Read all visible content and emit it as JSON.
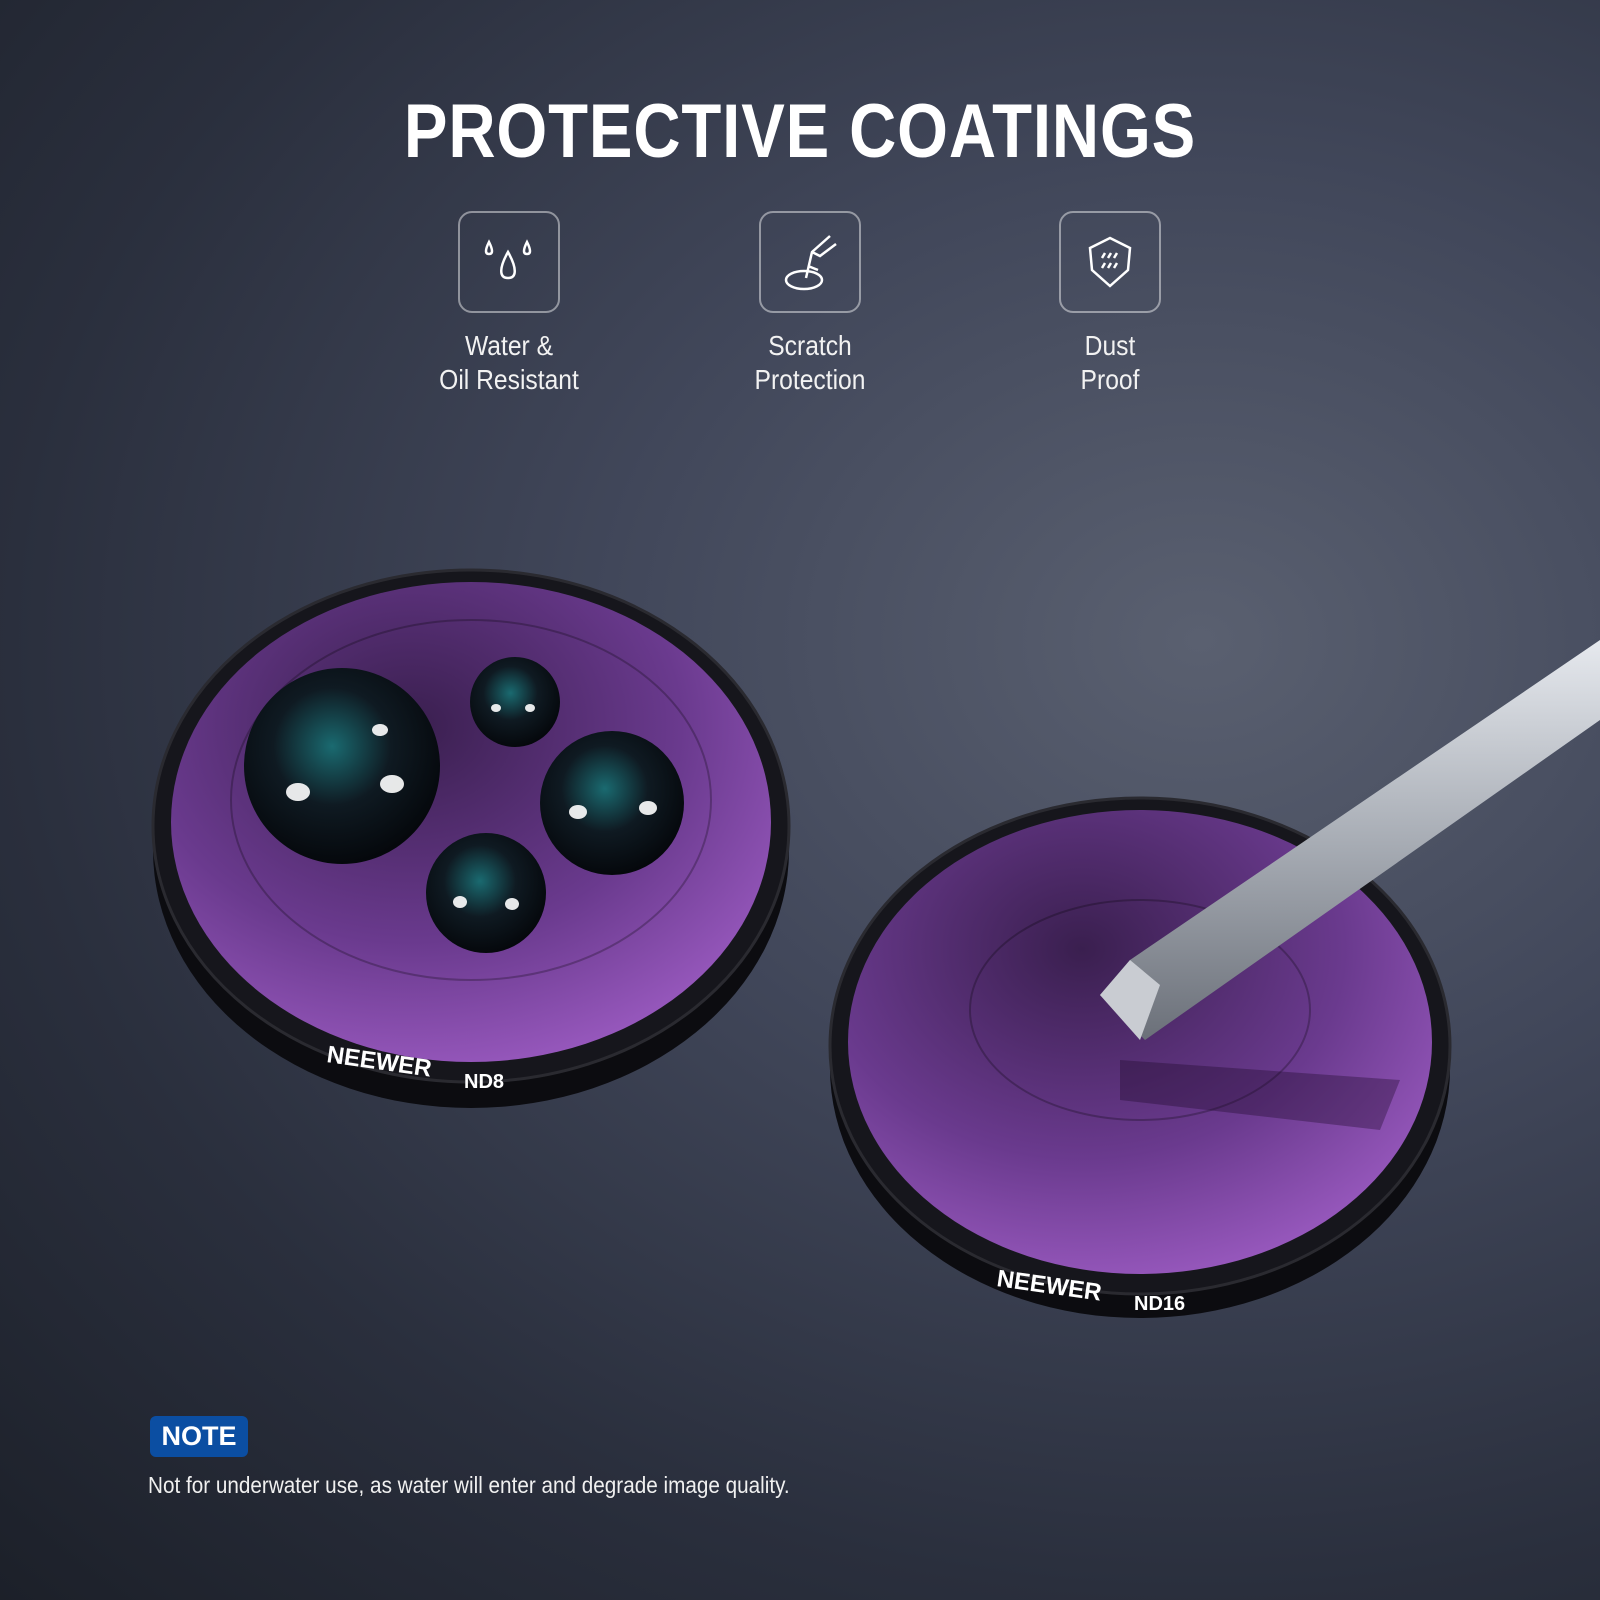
{
  "title": "PROTECTIVE COATINGS",
  "features": [
    {
      "icon": "water-drops-icon",
      "line1": "Water &",
      "line2": "Oil Resistant"
    },
    {
      "icon": "scratch-icon",
      "line1": "Scratch",
      "line2": "Protection"
    },
    {
      "icon": "shield-icon",
      "line1": "Dust",
      "line2": "Proof"
    }
  ],
  "filters": [
    {
      "brand": "NEEWER",
      "model": "ND8"
    },
    {
      "brand": "NEEWER",
      "model": "ND16"
    }
  ],
  "note": {
    "badge": "NOTE",
    "text": "Not for underwater use, as water will enter and degrade image quality.",
    "badge_color": "#0b4ea2"
  }
}
